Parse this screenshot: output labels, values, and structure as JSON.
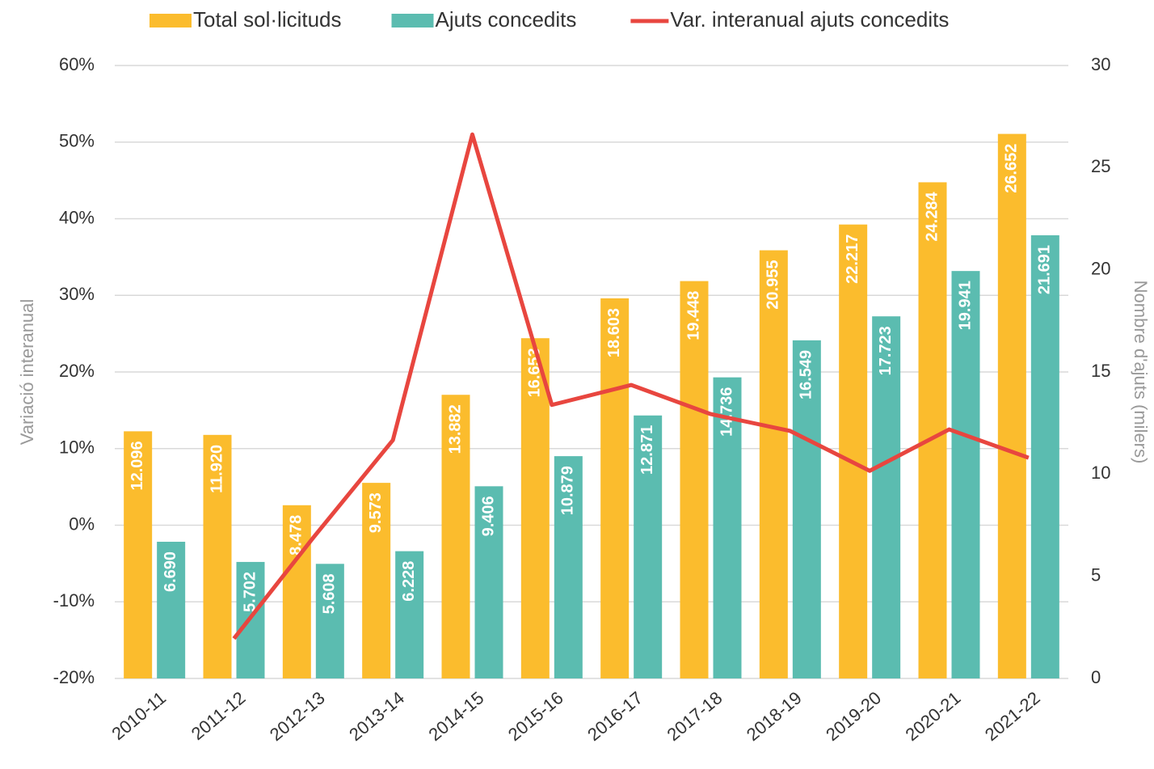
{
  "chart_data": {
    "type": "bar+line",
    "categories": [
      "2010-11",
      "2011-12",
      "2012-13",
      "2013-14",
      "2014-15",
      "2015-16",
      "2016-17",
      "2017-18",
      "2018-19",
      "2019-20",
      "2020-21",
      "2021-22"
    ],
    "series": [
      {
        "name": "Total sol·licituds",
        "type": "bar",
        "axis": "y2",
        "color": "#fbbc2d",
        "values": [
          12.096,
          11.92,
          8.478,
          9.573,
          13.882,
          16.653,
          18.603,
          19.448,
          20.955,
          22.217,
          24.284,
          26.652
        ],
        "value_labels": [
          "12.096",
          "11.920",
          "8.478",
          "9.573",
          "13.882",
          "16.653",
          "18.603",
          "19.448",
          "20.955",
          "22.217",
          "24.284",
          "26.652"
        ]
      },
      {
        "name": "Ajuts concedits",
        "type": "bar",
        "axis": "y2",
        "color": "#5bbcb0",
        "values": [
          6.69,
          5.702,
          5.608,
          6.228,
          9.406,
          10.879,
          12.871,
          14.736,
          16.549,
          17.723,
          19.941,
          21.691
        ],
        "value_labels": [
          "6.690",
          "5.702",
          "5.608",
          "6.228",
          "9.406",
          "10.879",
          "12.871",
          "14.736",
          "16.549",
          "17.723",
          "19.941",
          "21.691"
        ]
      },
      {
        "name": "Var. interanual ajuts concedits",
        "type": "line",
        "axis": "y",
        "color": "#e8463f",
        "values": [
          null,
          -14.8,
          -1.6,
          11.1,
          51.0,
          15.7,
          18.3,
          14.5,
          12.3,
          7.1,
          12.5,
          8.8
        ]
      }
    ],
    "ylabel": "Variació interanual",
    "y2label": "Nombre d'ajuts (milers)",
    "ylim": [
      -20,
      60
    ],
    "yticks": [
      {
        "value": -20,
        "label": "-20%"
      },
      {
        "value": -10,
        "label": "-10%"
      },
      {
        "value": 0,
        "label": "0%"
      },
      {
        "value": 10,
        "label": "10%"
      },
      {
        "value": 20,
        "label": "20%"
      },
      {
        "value": 30,
        "label": "30%"
      },
      {
        "value": 40,
        "label": "40%"
      },
      {
        "value": 50,
        "label": "50%"
      },
      {
        "value": 60,
        "label": "60%"
      }
    ],
    "y2lim": [
      0,
      30
    ],
    "y2ticks": [
      0,
      5,
      10,
      15,
      20,
      25,
      30
    ],
    "grid": true,
    "legend": "top"
  }
}
